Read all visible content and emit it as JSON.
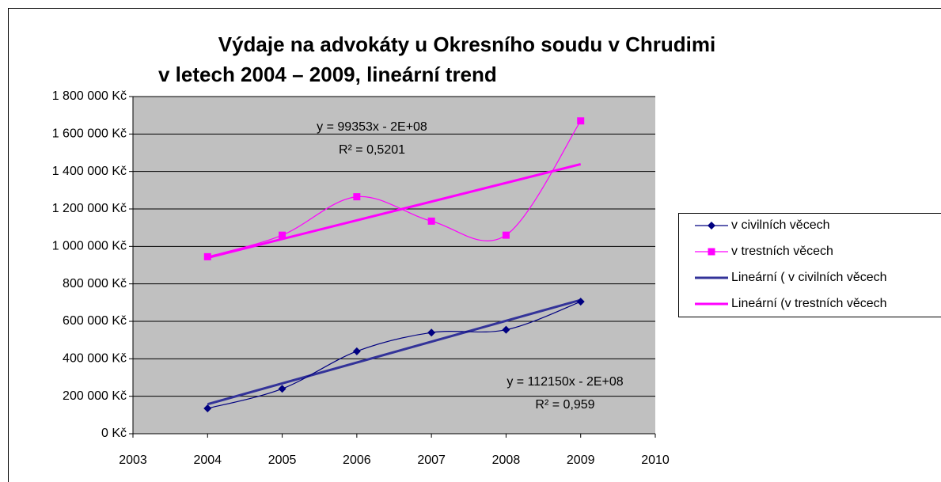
{
  "chart_data": {
    "type": "line",
    "title": [
      "Výdaje na advokáty  u Okresního soudu v Chrudimi",
      "v letech 2004 – 2009, lineární trend"
    ],
    "x": [
      2004,
      2005,
      2006,
      2007,
      2008,
      2009
    ],
    "xlim": [
      2003,
      2010
    ],
    "xticks": [
      2003,
      2004,
      2005,
      2006,
      2007,
      2008,
      2009,
      2010
    ],
    "ylim": [
      0,
      1800000
    ],
    "yticks": [
      {
        "value": 0,
        "label": "0 Kč"
      },
      {
        "value": 200000,
        "label": "200 000 Kč"
      },
      {
        "value": 400000,
        "label": "400 000 Kč"
      },
      {
        "value": 600000,
        "label": "600 000 Kč"
      },
      {
        "value": 800000,
        "label": "800 000 Kč"
      },
      {
        "value": 1000000,
        "label": "1 000 000 Kč"
      },
      {
        "value": 1200000,
        "label": "1 200 000 Kč"
      },
      {
        "value": 1400000,
        "label": "1 400 000 Kč"
      },
      {
        "value": 1600000,
        "label": "1 600 000 Kč"
      },
      {
        "value": 1800000,
        "label": "1 800 000 Kč"
      }
    ],
    "grid": true,
    "smooth": true,
    "legend": "right",
    "series": [
      {
        "name": " v civilních věcech",
        "color": "#000080",
        "marker": "diamond",
        "values": [
          135000,
          240000,
          440000,
          540000,
          555000,
          705000
        ],
        "trendline": {
          "name": "Lineární ( v civilních věcech",
          "color": "#333399",
          "equation": "y = 112150x - 2E+08",
          "r2": "R² = 0,959"
        }
      },
      {
        "name": "v trestních věcech",
        "color": "#ff00ff",
        "marker": "square",
        "values": [
          945000,
          1060000,
          1265000,
          1135000,
          1060000,
          1670000
        ],
        "trendline": {
          "name": "Lineární (v trestních věcech",
          "color": "#ff00ff",
          "equation": "y = 99353x - 2E+08",
          "r2": "R² = 0,5201"
        }
      }
    ]
  }
}
